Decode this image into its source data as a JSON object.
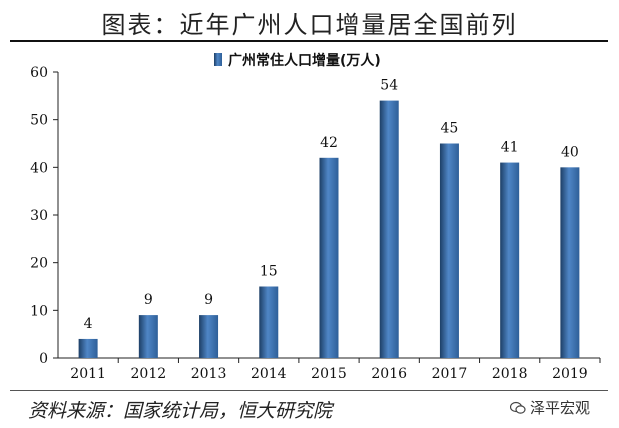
{
  "figure_title": "图表：近年广州人口增量居全国前列",
  "source": "资料来源：国家统计局，恒大研究院",
  "watermark": "泽平宏观",
  "wm_icon": "wechat-icon",
  "colors": {
    "bar_top": "#4f86c6",
    "bar_mid": "#2e5f98",
    "bar_edge": "#1d3f66"
  },
  "chart_data": {
    "type": "bar",
    "categories": [
      "2011",
      "2012",
      "2013",
      "2014",
      "2015",
      "2016",
      "2017",
      "2018",
      "2019"
    ],
    "series": [
      {
        "name": "广州常住人口增量(万人)",
        "values": [
          4,
          9,
          9,
          15,
          42,
          54,
          45,
          41,
          40
        ]
      }
    ],
    "ylim": [
      0,
      60
    ],
    "yticks": [
      0,
      10,
      20,
      30,
      40,
      50,
      60
    ],
    "data_labels": true,
    "legend": "top"
  }
}
